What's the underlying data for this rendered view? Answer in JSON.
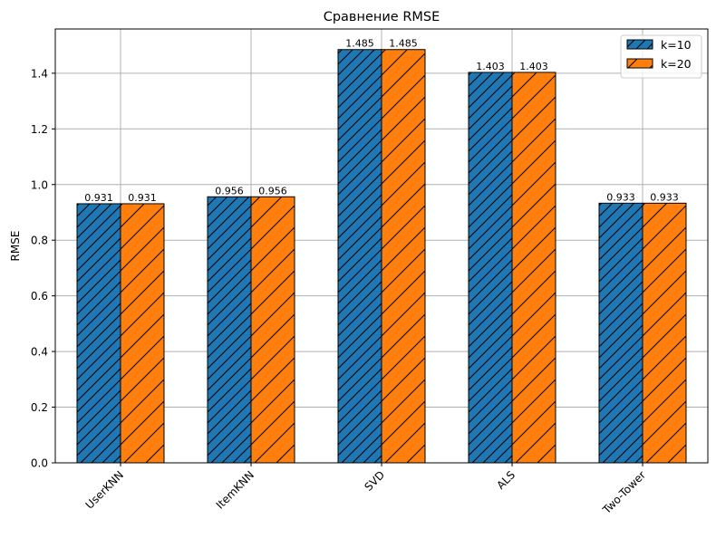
{
  "chart_data": {
    "type": "bar",
    "title": "Сравнение RMSE",
    "xlabel": "",
    "ylabel": "RMSE",
    "categories": [
      "UserKNN",
      "ItemKNN",
      "SVD",
      "ALS",
      "Two-Tower"
    ],
    "series": [
      {
        "name": "k=10",
        "color": "#1f77b4",
        "hatch": "dense-diagonal",
        "values": [
          0.931,
          0.956,
          1.485,
          1.403,
          0.933
        ],
        "labels": [
          "0.931",
          "0.956",
          "1.485",
          "1.403",
          "0.933"
        ]
      },
      {
        "name": "k=20",
        "color": "#ff7f0e",
        "hatch": "diagonal",
        "values": [
          0.931,
          0.956,
          1.485,
          1.403,
          0.933
        ],
        "labels": [
          "0.931",
          "0.956",
          "1.485",
          "1.403",
          "0.933"
        ]
      }
    ],
    "ylim": [
      0,
      1.559
    ],
    "yticks": [
      "0.0",
      "0.2",
      "0.4",
      "0.6",
      "0.8",
      "1.0",
      "1.2",
      "1.4"
    ],
    "grid": true,
    "legend_position": "top-right"
  }
}
